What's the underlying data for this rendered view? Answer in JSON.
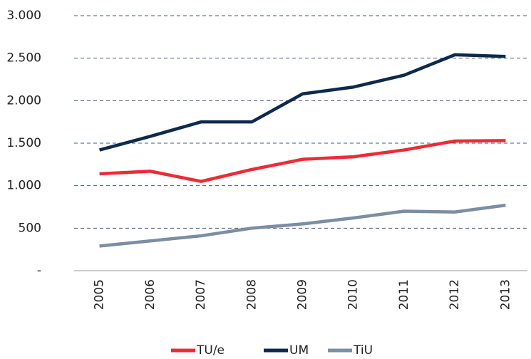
{
  "chart_data": {
    "type": "line",
    "categories": [
      "2005",
      "2006",
      "2007",
      "2008",
      "2009",
      "2010",
      "2011",
      "2012",
      "2013"
    ],
    "series": [
      {
        "name": "TU/e",
        "color": "#ee2a35",
        "values": [
          1140,
          1170,
          1050,
          1190,
          1310,
          1340,
          1420,
          1525,
          1530
        ]
      },
      {
        "name": "UM",
        "color": "#0c2a4d",
        "values": [
          1420,
          1580,
          1750,
          1750,
          2080,
          2160,
          2300,
          2540,
          2520
        ]
      },
      {
        "name": "TiU",
        "color": "#7b8ea3",
        "values": [
          290,
          350,
          410,
          500,
          550,
          620,
          700,
          690,
          770
        ]
      }
    ],
    "ylim": [
      0,
      3000
    ],
    "yticks": [
      {
        "value": 0,
        "label": "-"
      },
      500,
      {
        "value": 1000,
        "label": "1.000"
      },
      {
        "value": 1500,
        "label": "1.500"
      },
      {
        "value": 2000,
        "label": "2.000"
      },
      {
        "value": 2500,
        "label": "2.500"
      },
      {
        "value": 3000,
        "label": "3.000"
      }
    ],
    "grid": true
  }
}
